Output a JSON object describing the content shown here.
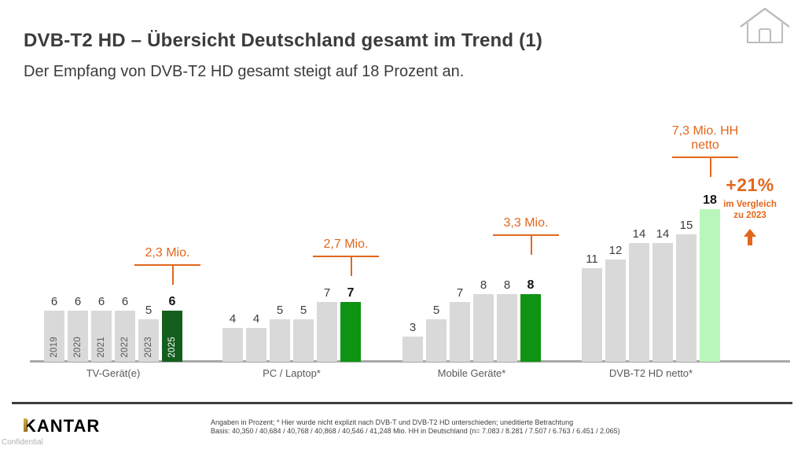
{
  "slide": {
    "title": "DVB-T2 HD – Übersicht Deutschland gesamt im Trend (1)",
    "subtitle": "Der Empfang von DVB-T2 HD gesamt steigt auf 18 Prozent an.",
    "logo_text": "KANTAR",
    "confidential_label": "Confidential",
    "footnote_line1": "Angaben in Prozent; * Hier wurde nicht explizit nach DVB-T und DVB-T2 HD unterschieden; uneditierte Betrachtung",
    "footnote_line2": "Basis: 40,350 / 40,684 / 40,768 / 40,868 / 40,546 / 41,248 Mio. HH in Deutschland (n= 7.083 / 8.281 / 7.507 / 6.763 / 6.451 / 2.065)"
  },
  "colors": {
    "orange": "#e2671c",
    "bar_gray": "#d9d9d9",
    "dark_green": "#155f1e",
    "green": "#0e9312",
    "light_green": "#b9f6bb",
    "axis_gray": "#a8a8a8",
    "text_dark": "#3c3c3c"
  },
  "chart_data": {
    "type": "bar",
    "title": "DVB-T2 HD – Übersicht Deutschland gesamt im Trend (1)",
    "unit": "Prozent",
    "categories": [
      "2019",
      "2020",
      "2021",
      "2022",
      "2023",
      "2025"
    ],
    "ylim": [
      0,
      20
    ],
    "grid": false,
    "legend_position": "none",
    "groups": [
      {
        "label": "TV-Gerät(e)",
        "values": [
          6,
          6,
          6,
          6,
          5,
          6
        ],
        "annotation_lines": [
          "2,3 Mio."
        ],
        "highlight": "dark_green",
        "years_in_bars": true
      },
      {
        "label": "PC / Laptop*",
        "values": [
          4,
          4,
          5,
          5,
          7,
          7
        ],
        "annotation_lines": [
          "2,7 Mio."
        ],
        "highlight": "green",
        "years_in_bars": false
      },
      {
        "label": "Mobile Geräte*",
        "values": [
          3,
          5,
          7,
          8,
          8,
          8
        ],
        "annotation_lines": [
          "3,3 Mio."
        ],
        "highlight": "green",
        "years_in_bars": false
      },
      {
        "label": "DVB-T2 HD netto*",
        "values": [
          11,
          12,
          14,
          14,
          15,
          18
        ],
        "annotation_lines": [
          "7,3 Mio. HH",
          "netto"
        ],
        "highlight": "light_green",
        "years_in_bars": false,
        "callout": {
          "headline": "+21%",
          "line1": "im Vergleich",
          "line2": "zu 2023",
          "arrow": "up"
        }
      }
    ]
  }
}
